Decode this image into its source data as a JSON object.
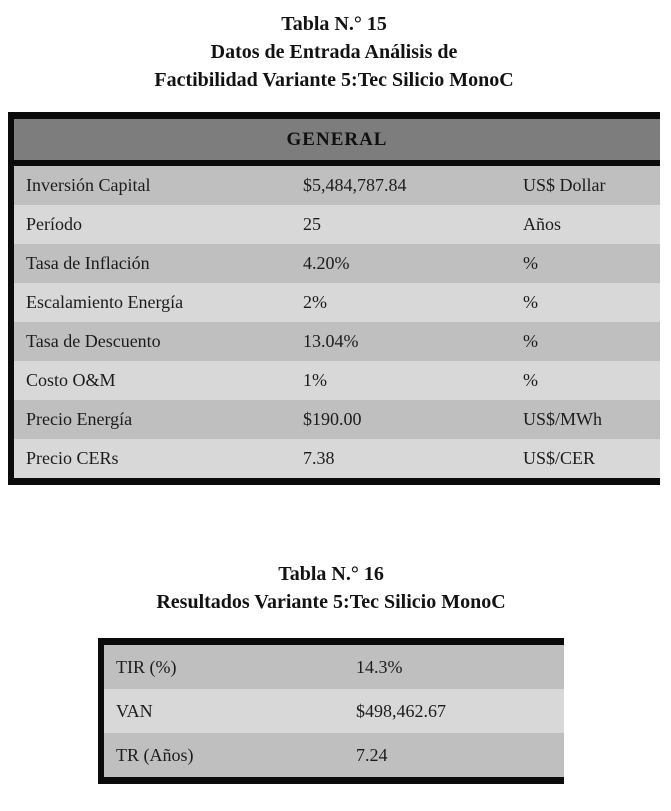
{
  "colors": {
    "header_gray": "#7d7d7d",
    "row_dark": "#bfbfbf",
    "row_light": "#d8d8d8",
    "border_black": "#0b0b0b",
    "page_background": "#ffffff"
  },
  "table15": {
    "title_lines": [
      "Tabla N.° 15",
      "Datos de Entrada Análisis de",
      "Factibilidad Variante 5:Tec Silicio MonoC"
    ],
    "header_label": "GENERAL",
    "rows": [
      {
        "label": "Inversión Capital",
        "value": "$5,484,787.84",
        "unit": "US$ Dollar"
      },
      {
        "label": "Período",
        "value": "25",
        "unit": "Años"
      },
      {
        "label": "Tasa de Inflación",
        "value": "4.20%",
        "unit": "%"
      },
      {
        "label": "Escalamiento Energía",
        "value": "2%",
        "unit": "%"
      },
      {
        "label": "Tasa de Descuento",
        "value": "13.04%",
        "unit": "%"
      },
      {
        "label": "Costo O&M",
        "value": "1%",
        "unit": "%"
      },
      {
        "label": "Precio Energía",
        "value": "$190.00",
        "unit": "US$/MWh"
      },
      {
        "label": "Precio CERs",
        "value": "7.38",
        "unit": "US$/CER"
      }
    ]
  },
  "table16": {
    "title_lines": [
      "Tabla N.° 16",
      "Resultados Variante 5:Tec Silicio MonoC"
    ],
    "rows": [
      {
        "label": "TIR (%)",
        "value": "14.3%"
      },
      {
        "label": "VAN",
        "value": "$498,462.67"
      },
      {
        "label": "TR (Años)",
        "value": "7.24"
      }
    ]
  }
}
